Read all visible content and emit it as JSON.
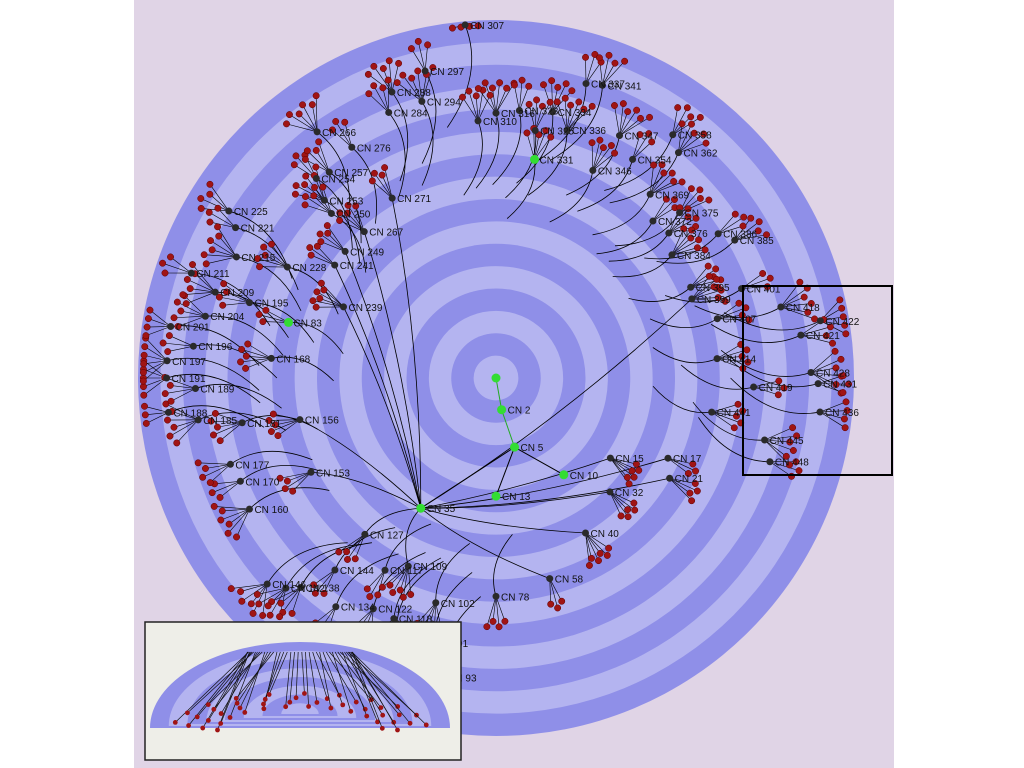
{
  "colors": {
    "panel_bg": "#e0d4e6",
    "ring_dark": "#8f8fe8",
    "ring_light": "#b4b4f0",
    "edge": "#000000",
    "node_hub": "#2a2a2a",
    "node_root": "#33dd33",
    "leaf": "#a01414",
    "zoom_box": "#000000",
    "inset_bg": "#eeeee8"
  },
  "rings": 8,
  "root": {
    "label": "",
    "angle": 0,
    "radius": 0
  },
  "core_path": [
    {
      "label": "CN 2",
      "angle": 80,
      "radius": 0.09
    },
    {
      "label": "CN 5",
      "angle": 75,
      "radius": 0.2
    },
    {
      "label": "CN 10",
      "angle": 55,
      "radius": 0.33
    },
    {
      "label": "CN 13",
      "angle": 90,
      "radius": 0.33
    },
    {
      "label": "CN 35",
      "angle": 120,
      "radius": 0.42
    }
  ],
  "hubs": [
    {
      "label": "CN 83",
      "angle": 195,
      "radius": 0.6
    },
    {
      "label": "CN 271",
      "angle": 240,
      "radius": 0.58
    },
    {
      "label": "CN 331",
      "angle": 280,
      "radius": 0.62
    },
    {
      "label": "CN 15",
      "angle": 35,
      "radius": 0.39
    },
    {
      "label": "CN 17",
      "angle": 25,
      "radius": 0.53
    },
    {
      "label": "CN 21",
      "angle": 30,
      "radius": 0.56
    },
    {
      "label": "CN 32",
      "angle": 45,
      "radius": 0.45
    },
    {
      "label": "CN 40",
      "angle": 60,
      "radius": 0.5
    },
    {
      "label": "CN 58",
      "angle": 75,
      "radius": 0.58
    },
    {
      "label": "CN 78",
      "angle": 90,
      "radius": 0.61
    },
    {
      "label": "CN 102",
      "angle": 105,
      "radius": 0.65
    },
    {
      "label": "CN 109",
      "angle": 115,
      "radius": 0.58
    },
    {
      "label": "CN 117",
      "angle": 120,
      "radius": 0.62
    },
    {
      "label": "CN 127",
      "angle": 130,
      "radius": 0.57
    },
    {
      "label": "CN 93",
      "angle": 100,
      "radius": 0.85
    },
    {
      "label": "CN 91",
      "angle": 103,
      "radius": 0.76
    },
    {
      "label": "CN 134",
      "angle": 125,
      "radius": 0.78
    },
    {
      "label": "CN 138",
      "angle": 133,
      "radius": 0.8
    },
    {
      "label": "CN 142",
      "angle": 135,
      "radius": 0.83
    },
    {
      "label": "CN 146",
      "angle": 138,
      "radius": 0.86
    },
    {
      "label": "CN 144",
      "angle": 130,
      "radius": 0.7
    },
    {
      "label": "CN 153",
      "angle": 153,
      "radius": 0.58
    },
    {
      "label": "CN 156",
      "angle": 168,
      "radius": 0.56
    },
    {
      "label": "CN 160",
      "angle": 152,
      "radius": 0.78
    },
    {
      "label": "CN 170",
      "angle": 158,
      "radius": 0.77
    },
    {
      "label": "CN 177",
      "angle": 162,
      "radius": 0.78
    },
    {
      "label": "CN 181",
      "angle": 170,
      "radius": 0.72
    },
    {
      "label": "CN 185",
      "angle": 172,
      "radius": 0.84
    },
    {
      "label": "CN 188",
      "angle": 174,
      "radius": 0.92
    },
    {
      "label": "CN 189",
      "angle": 178,
      "radius": 0.84
    },
    {
      "label": "CN 191",
      "angle": 180,
      "radius": 0.92
    },
    {
      "label": "CN 197",
      "angle": 183,
      "radius": 0.92
    },
    {
      "label": "CN 196",
      "angle": 186,
      "radius": 0.85
    },
    {
      "label": "CN 201",
      "angle": 189,
      "radius": 0.92
    },
    {
      "label": "CN 204",
      "angle": 192,
      "radius": 0.83
    },
    {
      "label": "CN 209",
      "angle": 197,
      "radius": 0.82
    },
    {
      "label": "CN 211",
      "angle": 199,
      "radius": 0.9
    },
    {
      "label": "CN 195",
      "angle": 197,
      "radius": 0.72
    },
    {
      "label": "CN 168",
      "angle": 185,
      "radius": 0.63
    },
    {
      "label": "CN 215",
      "angle": 205,
      "radius": 0.8
    },
    {
      "label": "CN 221",
      "angle": 210,
      "radius": 0.84
    },
    {
      "label": "CN 225",
      "angle": 212,
      "radius": 0.88
    },
    {
      "label": "CN 228",
      "angle": 208,
      "radius": 0.66
    },
    {
      "label": "CN 239",
      "angle": 205,
      "radius": 0.47
    },
    {
      "label": "CN 241",
      "angle": 215,
      "radius": 0.55
    },
    {
      "label": "CN 249",
      "angle": 220,
      "radius": 0.55
    },
    {
      "label": "CN 250",
      "angle": 225,
      "radius": 0.65
    },
    {
      "label": "CN 253",
      "angle": 226,
      "radius": 0.69
    },
    {
      "label": "CN 254",
      "angle": 228,
      "radius": 0.75
    },
    {
      "label": "CN 257",
      "angle": 231,
      "radius": 0.74
    },
    {
      "label": "CN 267",
      "angle": 228,
      "radius": 0.55
    },
    {
      "label": "CN 266",
      "angle": 234,
      "radius": 0.85
    },
    {
      "label": "CN 276",
      "angle": 238,
      "radius": 0.76
    },
    {
      "label": "CN 284",
      "angle": 248,
      "radius": 0.8
    },
    {
      "label": "CN 288",
      "angle": 250,
      "radius": 0.85
    },
    {
      "label": "CN 294",
      "angle": 255,
      "radius": 0.8
    },
    {
      "label": "CN 297",
      "angle": 257,
      "radius": 0.88
    },
    {
      "label": "CN 307",
      "angle": 265,
      "radius": 0.99
    },
    {
      "label": "CN 310",
      "angle": 266,
      "radius": 0.72
    },
    {
      "label": "CN 316",
      "angle": 270,
      "radius": 0.74
    },
    {
      "label": "CN 323",
      "angle": 275,
      "radius": 0.75
    },
    {
      "label": "CN 325",
      "angle": 279,
      "radius": 0.7
    },
    {
      "label": "CN 334",
      "angle": 282,
      "radius": 0.76
    },
    {
      "label": "CN 336",
      "angle": 286,
      "radius": 0.72
    },
    {
      "label": "CN 337",
      "angle": 287,
      "radius": 0.86
    },
    {
      "label": "CN 341",
      "angle": 290,
      "radius": 0.87
    },
    {
      "label": "CN 346",
      "angle": 295,
      "radius": 0.64
    },
    {
      "label": "CN 347",
      "angle": 297,
      "radius": 0.76
    },
    {
      "label": "CN 354",
      "angle": 302,
      "radius": 0.72
    },
    {
      "label": "CN 358",
      "angle": 306,
      "radius": 0.84
    },
    {
      "label": "CN 362",
      "angle": 309,
      "radius": 0.81
    },
    {
      "label": "CN 369",
      "angle": 310,
      "radius": 0.67
    },
    {
      "label": "CN 372",
      "angle": 315,
      "radius": 0.62
    },
    {
      "label": "CN 375",
      "angle": 318,
      "radius": 0.69
    },
    {
      "label": "CN 376",
      "angle": 320,
      "radius": 0.63
    },
    {
      "label": "CN 384",
      "angle": 325,
      "radius": 0.6
    },
    {
      "label": "CN 386",
      "angle": 327,
      "radius": 0.74
    },
    {
      "label": "CN 385",
      "angle": 330,
      "radius": 0.77
    },
    {
      "label": "CN 395",
      "angle": 335,
      "radius": 0.6
    },
    {
      "label": "CN 399",
      "angle": 338,
      "radius": 0.59
    },
    {
      "label": "CN 401",
      "angle": 340,
      "radius": 0.73
    },
    {
      "label": "CN 407",
      "angle": 345,
      "radius": 0.64
    },
    {
      "label": "CN 414",
      "angle": 355,
      "radius": 0.62
    },
    {
      "label": "CN 418",
      "angle": 346,
      "radius": 0.82
    },
    {
      "label": "CN 419",
      "angle": 2,
      "radius": 0.72
    },
    {
      "label": "CN 421",
      "angle": 352,
      "radius": 0.86
    },
    {
      "label": "CN 422",
      "angle": 350,
      "radius": 0.92
    },
    {
      "label": "CN 428",
      "angle": 359,
      "radius": 0.88
    },
    {
      "label": "CN 431",
      "angle": 1,
      "radius": 0.9
    },
    {
      "label": "CN 436",
      "angle": 6,
      "radius": 0.91
    },
    {
      "label": "CN 441",
      "angle": 9,
      "radius": 0.61
    },
    {
      "label": "CN 445",
      "angle": 13,
      "radius": 0.77
    },
    {
      "label": "CN 448",
      "angle": 17,
      "radius": 0.8
    },
    {
      "label": "CN 122",
      "angle": 118,
      "radius": 0.73
    },
    {
      "label": "CN 118",
      "angle": 113,
      "radius": 0.73
    },
    {
      "label": "CN 110",
      "angle": 112,
      "radius": 0.74
    }
  ]
}
